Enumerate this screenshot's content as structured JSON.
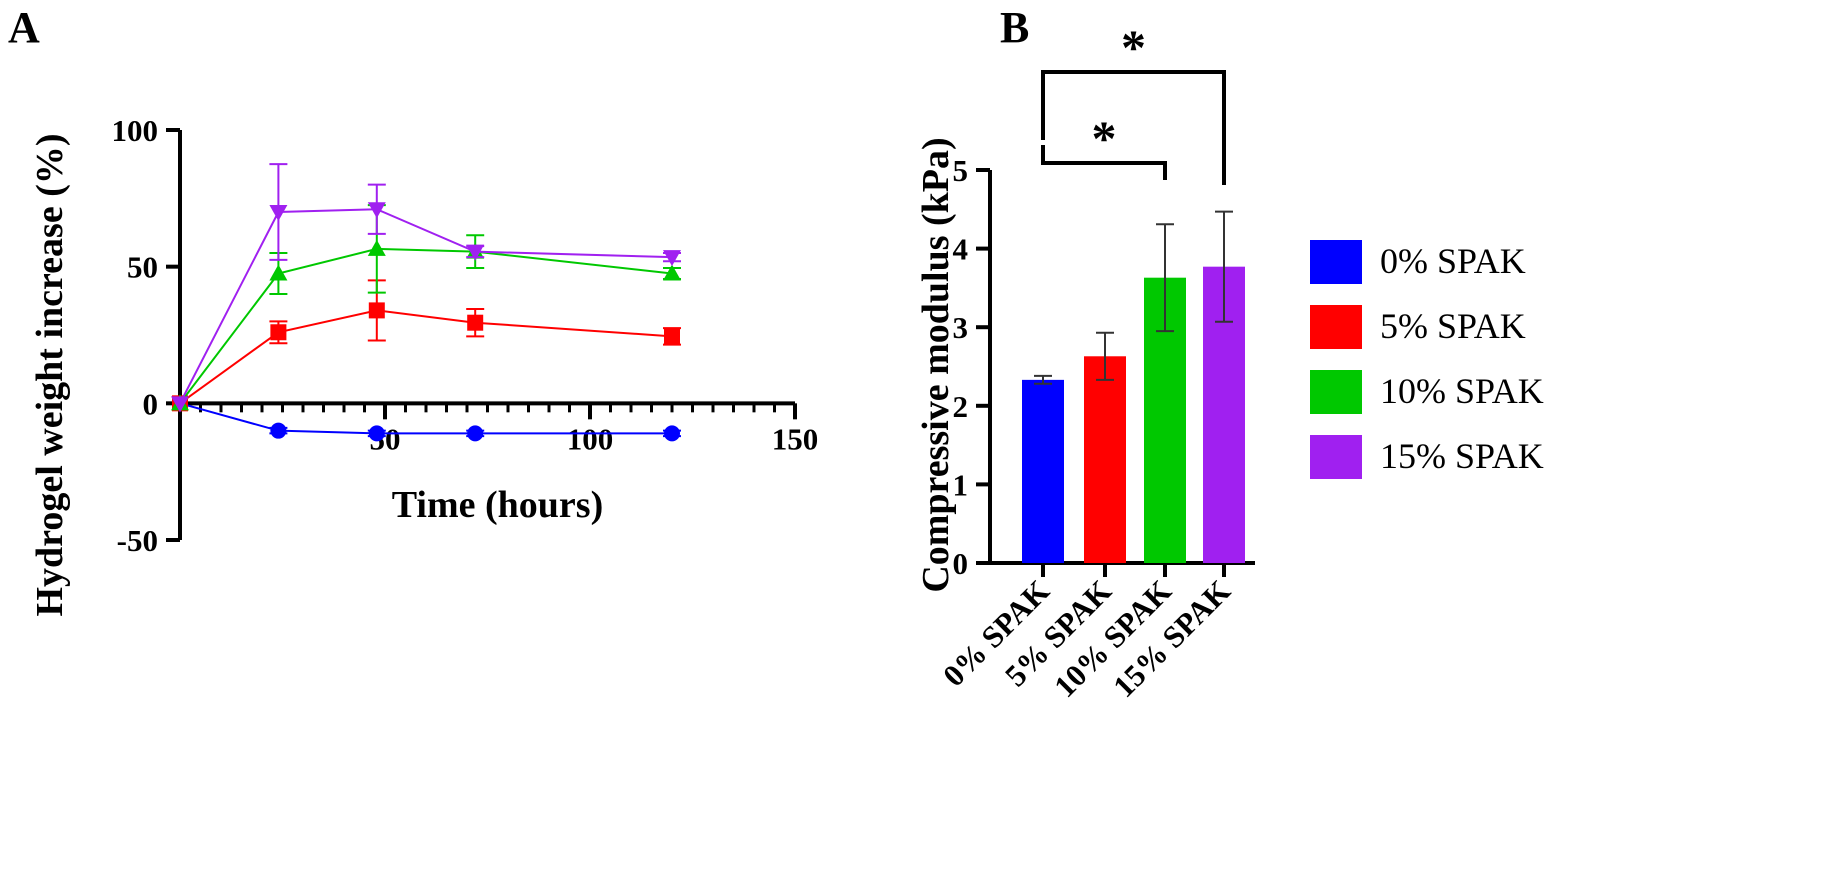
{
  "panels": {
    "a": {
      "label": "A"
    },
    "b": {
      "label": "B"
    }
  },
  "chart_data": [
    {
      "type": "line",
      "xlabel": "Time (hours)",
      "ylabel": "Hydrogel weight increase (%)",
      "xlim": [
        0,
        150
      ],
      "ylim": [
        -50,
        100
      ],
      "xticks": [
        "50",
        "100",
        "150"
      ],
      "yticks": [
        "-50",
        "0",
        "50",
        "100"
      ],
      "x": [
        0,
        24,
        48,
        72,
        120
      ],
      "series": [
        {
          "name": "0% SPAK",
          "color": "#0000ff",
          "marker": "circle",
          "values": [
            0,
            -10,
            -11,
            -11,
            -11
          ],
          "errors": [
            0,
            1,
            1,
            1,
            1
          ]
        },
        {
          "name": "5% SPAK",
          "color": "#ff0000",
          "marker": "square",
          "values": [
            0,
            26,
            34,
            29.5,
            24.5
          ],
          "errors": [
            0,
            4,
            11,
            5,
            3
          ]
        },
        {
          "name": "10% SPAK",
          "color": "#00c800",
          "marker": "triangle-up",
          "values": [
            0,
            47.5,
            56.5,
            55.5,
            47.5
          ],
          "errors": [
            0,
            7.5,
            16,
            6,
            2
          ]
        },
        {
          "name": "15% SPAK",
          "color": "#a020f0",
          "marker": "triangle-down",
          "values": [
            0,
            70,
            71,
            55.5,
            53.5
          ],
          "errors": [
            0,
            17.5,
            9,
            2,
            1.5
          ]
        }
      ]
    },
    {
      "type": "bar",
      "ylabel": "Compressive modulus (kPa)",
      "ylim": [
        0,
        5
      ],
      "yticks": [
        "0",
        "1",
        "2",
        "3",
        "4",
        "5"
      ],
      "categories": [
        "0% SPAK",
        "5% SPAK",
        "10% SPAK",
        "15% SPAK"
      ],
      "values": [
        2.33,
        2.63,
        3.63,
        3.77
      ],
      "errors": [
        0.05,
        0.3,
        0.68,
        0.7
      ],
      "colors": [
        "#0000ff",
        "#ff0000",
        "#00c800",
        "#a020f0"
      ],
      "significance": [
        {
          "from": "0% SPAK",
          "to": "10% SPAK",
          "label": "*"
        },
        {
          "from": "0% SPAK",
          "to": "15% SPAK",
          "label": "*"
        }
      ],
      "legend": {
        "position": "right",
        "entries": [
          "0% SPAK",
          "5% SPAK",
          "10% SPAK",
          "15% SPAK"
        ]
      }
    }
  ]
}
